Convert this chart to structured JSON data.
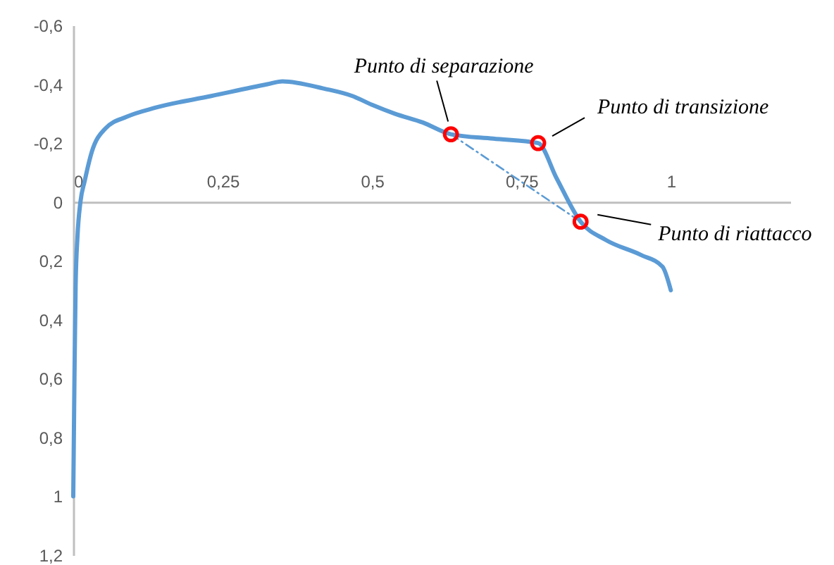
{
  "chart_data": {
    "type": "line",
    "xlim": [
      0,
      1.2
    ],
    "xticks": [
      0,
      {
        "value": 0.25,
        "label": "0,25"
      },
      {
        "value": 0.5,
        "label": "0,5"
      },
      {
        "value": 0.75,
        "label": "0,75"
      },
      1
    ],
    "ylim": [
      1.2,
      -0.6
    ],
    "yticks": [
      {
        "value": -0.6,
        "label": "-0,6"
      },
      {
        "value": -0.4,
        "label": "-0,4"
      },
      {
        "value": -0.2,
        "label": "-0,2"
      },
      0,
      {
        "value": 0.2,
        "label": "0,2"
      },
      {
        "value": 0.4,
        "label": "0,4"
      },
      {
        "value": 0.6,
        "label": "0,6"
      },
      {
        "value": 0.8,
        "label": "0,8"
      },
      1,
      {
        "value": 1.2,
        "label": "1,2"
      }
    ],
    "grid": false,
    "series": [
      {
        "color": "#5b9bd5",
        "line_style": "solid",
        "x": [
          0,
          0.002,
          0.004,
          0.007,
          0.012,
          0.019,
          0.031,
          0.054,
          0.09,
          0.137,
          0.231,
          0.325,
          0.35,
          0.42,
          0.467,
          0.5,
          0.538,
          0.585,
          0.632,
          0.703,
          0.778,
          0.809,
          0.849,
          0.892,
          0.95,
          0.986,
          1.0
        ],
        "values": [
          1,
          0.6,
          0.28,
          0.12,
          0,
          -0.07,
          -0.17,
          -0.25,
          -0.29,
          -0.32,
          -0.36,
          -0.4,
          -0.41,
          -0.385,
          -0.36,
          -0.33,
          -0.3,
          -0.27,
          -0.23,
          -0.215,
          -0.2,
          -0.08,
          0.067,
          0.13,
          0.18,
          0.22,
          0.3
        ]
      },
      {
        "type": "line",
        "color": "#5b9bd5",
        "line_style": "dashed",
        "x": [
          0.632,
          0.849
        ],
        "values": [
          -0.23,
          0.067
        ]
      },
      {
        "type": "scatter",
        "color": "#ff0000",
        "marker": "circle",
        "x": [
          0.632,
          0.778,
          0.849
        ],
        "values": [
          -0.23,
          -0.2,
          0.067
        ]
      }
    ],
    "annotations": [
      {
        "text": "Punto di separazione",
        "x": 0.632,
        "y": -0.23
      },
      "Punto di transizione",
      "Punto di riattacco"
    ]
  }
}
